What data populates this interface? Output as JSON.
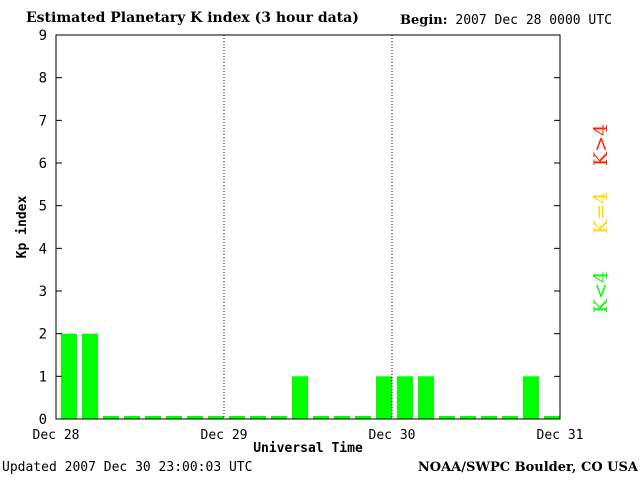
{
  "header": {
    "title": "Estimated Planetary K index (3 hour data)",
    "begin_label": "Begin:",
    "begin_value": "2007 Dec 28 0000 UTC"
  },
  "footer": {
    "updated_label": "Updated",
    "updated_value": "2007 Dec 30 23:00:03 UTC",
    "credit": "NOAA/SWPC Boulder, CO USA"
  },
  "legend": {
    "items": [
      {
        "label": "K<4",
        "color": "#00ff00"
      },
      {
        "label": "K=4",
        "color": "#ffd800"
      },
      {
        "label": "K>4",
        "color": "#ff2200"
      }
    ]
  },
  "chart_data": {
    "type": "bar",
    "xlabel": "Universal Time",
    "ylabel": "Kp index",
    "ylim": [
      0,
      9
    ],
    "yticks": [
      0,
      1,
      2,
      3,
      4,
      5,
      6,
      7,
      8,
      9
    ],
    "xticks": [
      "Dec 28",
      "Dec 29",
      "Dec 30",
      "Dec 31"
    ],
    "interval_hours": 3,
    "series": [
      {
        "values": [
          2,
          2,
          0,
          0,
          0,
          0,
          0,
          0,
          0,
          0,
          0,
          1,
          0,
          0,
          0,
          1,
          1,
          1,
          0,
          0,
          0,
          0,
          1,
          0
        ]
      }
    ],
    "colors": {
      "bar": "#00ff00",
      "day_separator": "#000000"
    },
    "grid": false
  }
}
